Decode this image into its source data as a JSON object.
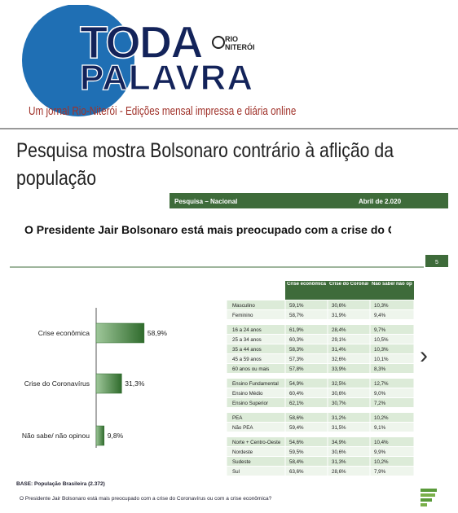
{
  "header": {
    "logo_top": "TODA",
    "logo_bottom": "PALAVRA",
    "badge_top": "RIO",
    "badge_bottom": "NITERÓI",
    "tagline": "Um jornal Rio-Niterói - Edições mensal impressa e diária online"
  },
  "article": {
    "title": "Pesquisa mostra Bolsonaro contrário à aflição da população"
  },
  "slide": {
    "section": "Pesquisa – Nacional",
    "date": "Abril de 2.020",
    "question": "O Presidente Jair Bolsonaro está mais preocupado com a crise do Coronavírus ou com a crise econômica?",
    "page_number": "5",
    "bar_chart": {
      "type": "bar",
      "categories": [
        "Crise econômica",
        "Crise do Coronavírus",
        "Não sabe/ não opinou"
      ],
      "values": [
        58.9,
        31.3,
        9.8
      ],
      "value_labels": [
        "58,9%",
        "31,3%",
        "9,8%"
      ],
      "color": "#2f6b2c",
      "xlim": [
        0,
        100
      ]
    },
    "table": {
      "columns": [
        "Crise econômica",
        "Crise do Coronavírus",
        "Não sabe/ não opinou"
      ],
      "groups": [
        [
          [
            "Masculino",
            "59,1%",
            "30,6%",
            "10,3%"
          ],
          [
            "Feminino",
            "58,7%",
            "31,9%",
            "9,4%"
          ]
        ],
        [
          [
            "16 a 24 anos",
            "61,9%",
            "28,4%",
            "9,7%"
          ],
          [
            "25 a 34 anos",
            "60,3%",
            "29,1%",
            "10,5%"
          ],
          [
            "35 a 44 anos",
            "58,3%",
            "31,4%",
            "10,3%"
          ],
          [
            "45 a 59 anos",
            "57,3%",
            "32,6%",
            "10,1%"
          ],
          [
            "60 anos ou mais",
            "57,8%",
            "33,9%",
            "8,3%"
          ]
        ],
        [
          [
            "Ensino Fundamental",
            "54,9%",
            "32,5%",
            "12,7%"
          ],
          [
            "Ensino Médio",
            "60,4%",
            "30,6%",
            "9,0%"
          ],
          [
            "Ensino Superior",
            "62,1%",
            "30,7%",
            "7,2%"
          ]
        ],
        [
          [
            "PEA",
            "58,6%",
            "31,2%",
            "10,2%"
          ],
          [
            "Não PEA",
            "59,4%",
            "31,5%",
            "9,1%"
          ]
        ],
        [
          [
            "Norte + Centro-Oeste",
            "54,6%",
            "34,9%",
            "10,4%"
          ],
          [
            "Nordeste",
            "59,5%",
            "30,6%",
            "9,9%"
          ],
          [
            "Sudeste",
            "58,4%",
            "31,3%",
            "10,2%"
          ],
          [
            "Sul",
            "63,6%",
            "28,6%",
            "7,9%"
          ]
        ]
      ]
    },
    "base": "BASE: População Brasileira (2.372)",
    "footnote": "O Presidente Jair Bolsonaro está mais preocupado com a crise do Coronavírus ou com a crise econômica?"
  }
}
